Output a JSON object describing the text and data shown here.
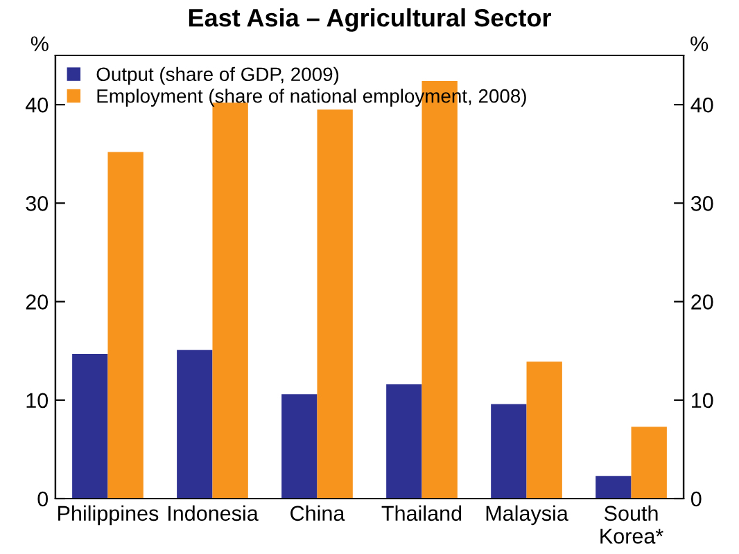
{
  "chart_data": {
    "type": "bar",
    "title": "East Asia – Agricultural Sector",
    "ylabel": "%",
    "y2label": "%",
    "categories": [
      "Philippines",
      "Indonesia",
      "China",
      "Thailand",
      "Malaysia",
      "South\nKorea*"
    ],
    "series": [
      {
        "name": "Output (share of GDP, 2009)",
        "color": "#2e3192",
        "values": [
          14.7,
          15.1,
          10.6,
          11.6,
          9.6,
          2.3
        ]
      },
      {
        "name": "Employment (share of national employment, 2008)",
        "color": "#f7941d",
        "values": [
          35.2,
          40.2,
          39.5,
          42.4,
          13.9,
          7.3
        ]
      }
    ],
    "ylim": [
      0,
      45
    ],
    "yticks": [
      0,
      10,
      20,
      30,
      40
    ],
    "y2lim": [
      0,
      45
    ],
    "y2ticks": [
      0,
      10,
      20,
      30,
      40
    ],
    "legend": "top left",
    "grid": false
  }
}
